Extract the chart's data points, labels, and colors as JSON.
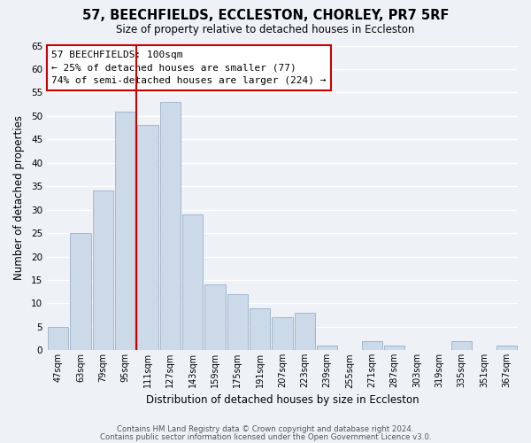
{
  "title": "57, BEECHFIELDS, ECCLESTON, CHORLEY, PR7 5RF",
  "subtitle": "Size of property relative to detached houses in Eccleston",
  "xlabel": "Distribution of detached houses by size in Eccleston",
  "ylabel": "Number of detached properties",
  "bar_labels": [
    "47sqm",
    "63sqm",
    "79sqm",
    "95sqm",
    "111sqm",
    "127sqm",
    "143sqm",
    "159sqm",
    "175sqm",
    "191sqm",
    "207sqm",
    "223sqm",
    "239sqm",
    "255sqm",
    "271sqm",
    "287sqm",
    "303sqm",
    "319sqm",
    "335sqm",
    "351sqm",
    "367sqm"
  ],
  "bar_values": [
    5,
    25,
    34,
    51,
    48,
    53,
    29,
    14,
    12,
    9,
    7,
    8,
    1,
    0,
    2,
    1,
    0,
    0,
    2,
    0,
    1
  ],
  "bar_color": "#ccd9e8",
  "bar_edge_color": "#9ab0c8",
  "ylim": [
    0,
    65
  ],
  "yticks": [
    0,
    5,
    10,
    15,
    20,
    25,
    30,
    35,
    40,
    45,
    50,
    55,
    60,
    65
  ],
  "vline_x": 3.5,
  "vline_color": "#cc0000",
  "annotation_title": "57 BEECHFIELDS: 100sqm",
  "annotation_line1": "← 25% of detached houses are smaller (77)",
  "annotation_line2": "74% of semi-detached houses are larger (224) →",
  "annotation_box_color": "#ffffff",
  "annotation_box_edge": "#cc0000",
  "footer_line1": "Contains HM Land Registry data © Crown copyright and database right 2024.",
  "footer_line2": "Contains public sector information licensed under the Open Government Licence v3.0.",
  "background_color": "#eef2f7",
  "plot_background": "#eef2f7",
  "grid_color": "#ffffff",
  "figsize": [
    6.0,
    5.0
  ],
  "dpi": 100
}
